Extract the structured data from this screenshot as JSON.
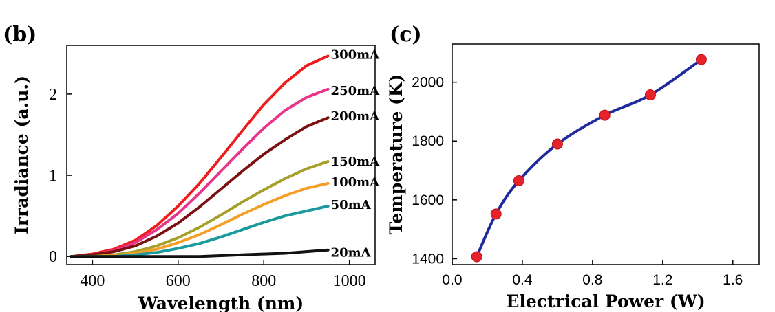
{
  "chart_data": [
    {
      "panel": "(b)",
      "type": "line",
      "xlabel": "Wavelength (nm)",
      "ylabel": "Irradiance (a.u.)",
      "xlim": [
        340,
        1060
      ],
      "ylim": [
        -0.1,
        2.6
      ],
      "xticks": [
        400,
        600,
        800,
        1000
      ],
      "yticks": [
        0,
        1,
        2
      ],
      "x": [
        350,
        400,
        450,
        500,
        550,
        600,
        650,
        700,
        750,
        800,
        850,
        900,
        950
      ],
      "series": [
        {
          "name": "300mA",
          "color": "#ee1c1c",
          "values": [
            0.0,
            0.03,
            0.09,
            0.2,
            0.38,
            0.62,
            0.9,
            1.22,
            1.55,
            1.87,
            2.14,
            2.35,
            2.47
          ]
        },
        {
          "name": "250mA",
          "color": "#e8358a",
          "values": [
            0.0,
            0.02,
            0.07,
            0.17,
            0.33,
            0.53,
            0.78,
            1.05,
            1.32,
            1.58,
            1.8,
            1.96,
            2.06
          ]
        },
        {
          "name": "200mA",
          "color": "#7a1010",
          "values": [
            0.0,
            0.02,
            0.06,
            0.13,
            0.25,
            0.41,
            0.61,
            0.83,
            1.05,
            1.26,
            1.44,
            1.6,
            1.71
          ]
        },
        {
          "name": "150mA",
          "color": "#a4a02a",
          "values": [
            0.0,
            0.0,
            0.02,
            0.06,
            0.13,
            0.23,
            0.36,
            0.51,
            0.67,
            0.82,
            0.96,
            1.08,
            1.17
          ]
        },
        {
          "name": "100mA",
          "color": "#f4a028",
          "values": [
            0.0,
            0.0,
            0.01,
            0.04,
            0.09,
            0.17,
            0.27,
            0.39,
            0.52,
            0.64,
            0.75,
            0.84,
            0.9
          ]
        },
        {
          "name": "50mA",
          "color": "#1b9a9e",
          "values": [
            0.0,
            0.0,
            0.0,
            0.02,
            0.05,
            0.1,
            0.16,
            0.24,
            0.33,
            0.42,
            0.5,
            0.56,
            0.62
          ]
        },
        {
          "name": "20mA",
          "color": "#111111",
          "values": [
            0.0,
            0.0,
            0.0,
            0.0,
            0.0,
            0.0,
            0.0,
            0.01,
            0.02,
            0.03,
            0.04,
            0.06,
            0.08
          ]
        }
      ]
    },
    {
      "panel": "(c)",
      "type": "line",
      "xlabel": "Electrical Power (W)",
      "ylabel": "Temperature (K)",
      "xlim": [
        0.0,
        1.75
      ],
      "ylim": [
        1380,
        2130
      ],
      "xticks": [
        0.0,
        0.4,
        0.8,
        1.2,
        1.6
      ],
      "xtick_labels": [
        "0.0",
        "0.4",
        "0.8",
        "1.2",
        "1.6"
      ],
      "yticks": [
        1400,
        1600,
        1800,
        2000
      ],
      "line_color": "#1f2b9c",
      "marker_color": "#e8222a",
      "x": [
        0.14,
        0.25,
        0.38,
        0.6,
        0.87,
        1.13,
        1.42
      ],
      "y": [
        1407,
        1552,
        1665,
        1790,
        1888,
        1957,
        2077
      ]
    }
  ]
}
